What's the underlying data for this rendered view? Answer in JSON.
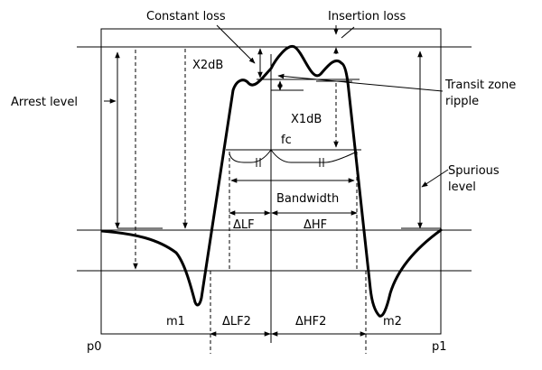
{
  "labels": {
    "constant_loss": "Constant loss",
    "insertion_loss": "Insertion loss",
    "x2db": "X2dB",
    "arrest_level": "Arrest level",
    "transit_zone_ripple_1": "Transit zone",
    "transit_zone_ripple_2": "ripple",
    "x1db": "X1dB",
    "fc": "fc",
    "spurious_level_1": "Spurious",
    "spurious_level_2": "level",
    "bandwidth": "Bandwidth",
    "delta_lf": "ΔLF",
    "delta_hf": "ΔHF",
    "m1": "m1",
    "m2": "m2",
    "delta_lf2": "ΔLF2",
    "delta_hf2": "ΔHF2",
    "p0": "p0",
    "p1": "p1"
  },
  "colors": {
    "line": "#000000",
    "background": "#ffffff"
  }
}
